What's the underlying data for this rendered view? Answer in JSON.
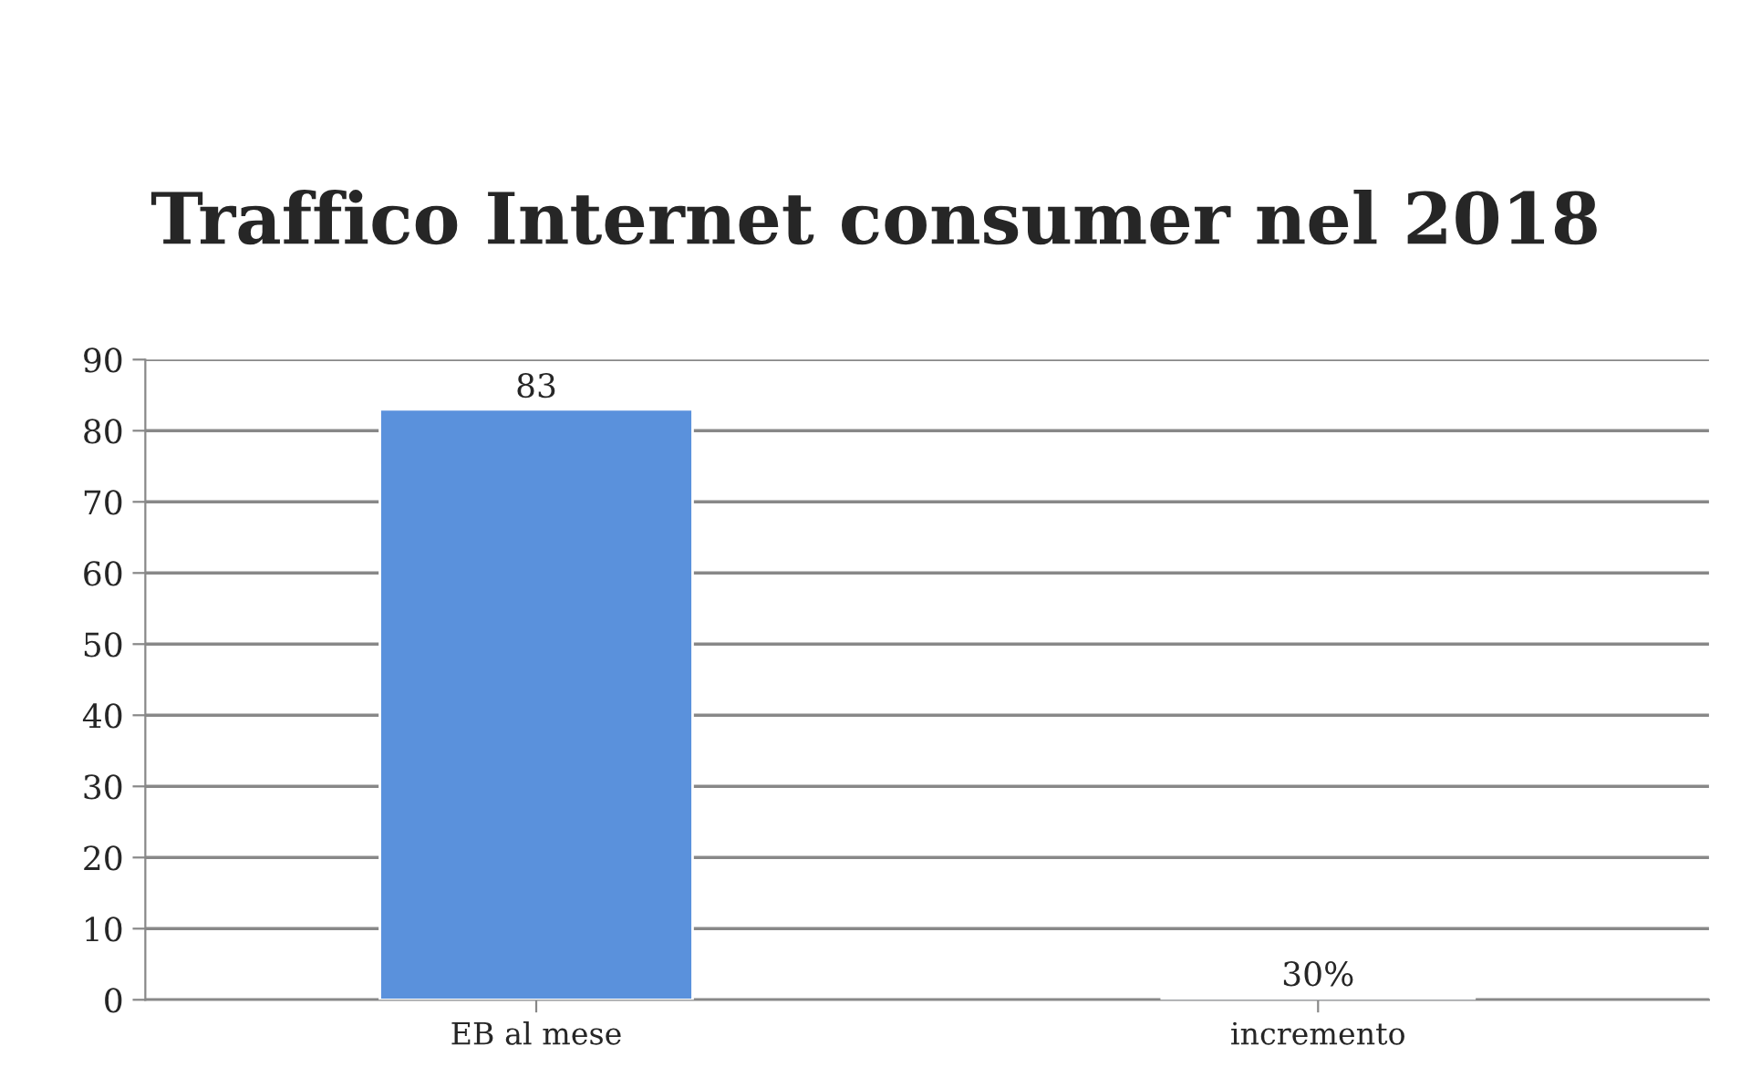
{
  "chart_data": {
    "type": "bar",
    "title": "Traffico Internet consumer nel 2018",
    "categories": [
      "EB al mese",
      "incremento"
    ],
    "values": [
      83,
      0.3
    ],
    "value_labels": [
      "83",
      "30%"
    ],
    "color": "#5a91dc",
    "ylim": [
      0,
      90
    ],
    "yticks": [
      0,
      10,
      20,
      30,
      40,
      50,
      60,
      70,
      80,
      90
    ],
    "grid": "y",
    "legend": false
  }
}
